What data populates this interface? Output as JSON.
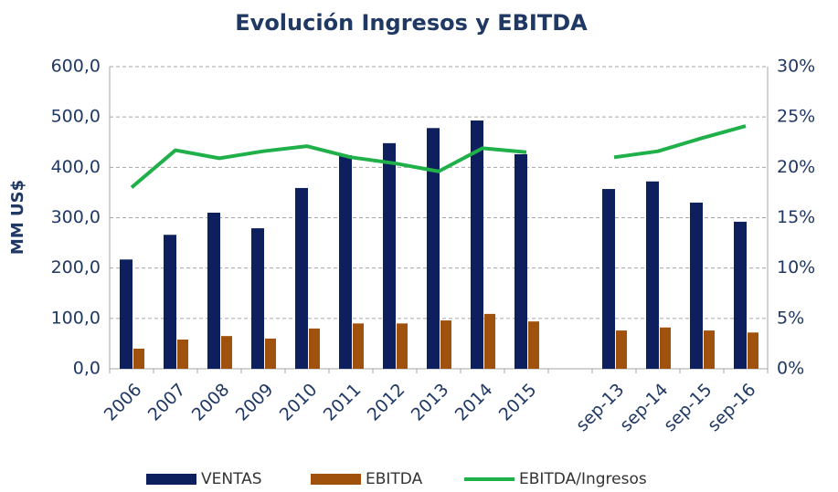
{
  "chart_data": {
    "type": "bar-line",
    "title": "Evolución Ingresos y EBITDA",
    "y_label": "MM US$",
    "categories": [
      "2006",
      "2007",
      "2008",
      "2009",
      "2010",
      "2011",
      "2012",
      "2013",
      "2014",
      "2015",
      null,
      "sep-13",
      "sep-14",
      "sep-15",
      "sep-16"
    ],
    "series": [
      {
        "name": "VENTAS",
        "type": "bar",
        "color": "#0d1f5c",
        "values": [
          217,
          266,
          310,
          279,
          359,
          424,
          448,
          478,
          493,
          426,
          null,
          357,
          372,
          330,
          292
        ]
      },
      {
        "name": "EBITDA",
        "type": "bar",
        "color": "#a0520d",
        "values": [
          40,
          58,
          65,
          60,
          80,
          90,
          90,
          96,
          109,
          94,
          null,
          76,
          82,
          76,
          72
        ]
      },
      {
        "name": "EBITDA/Ingresos",
        "type": "line",
        "axis": "y2",
        "color": "#1fb04a",
        "values": [
          18.0,
          21.7,
          20.9,
          21.6,
          22.1,
          21.0,
          20.4,
          19.6,
          21.9,
          21.5,
          null,
          21.0,
          21.6,
          22.9,
          24.1
        ]
      }
    ],
    "ylim": [
      0,
      600
    ],
    "yticks": [
      {
        "value": 0,
        "label": "0,0"
      },
      {
        "value": 100,
        "label": "100,0"
      },
      {
        "value": 200,
        "label": "200,0"
      },
      {
        "value": 300,
        "label": "300,0"
      },
      {
        "value": 400,
        "label": "400,0"
      },
      {
        "value": 500,
        "label": "500,0"
      },
      {
        "value": 600,
        "label": "600,0"
      }
    ],
    "y2lim": [
      0,
      30
    ],
    "y2ticks": [
      {
        "value": 0,
        "label": "0%"
      },
      {
        "value": 5,
        "label": "5%"
      },
      {
        "value": 10,
        "label": "10%"
      },
      {
        "value": 15,
        "label": "15%"
      },
      {
        "value": 20,
        "label": "20%"
      },
      {
        "value": 25,
        "label": "25%"
      },
      {
        "value": 30,
        "label": "30%"
      }
    ],
    "grid": true,
    "legend": "bottom"
  }
}
